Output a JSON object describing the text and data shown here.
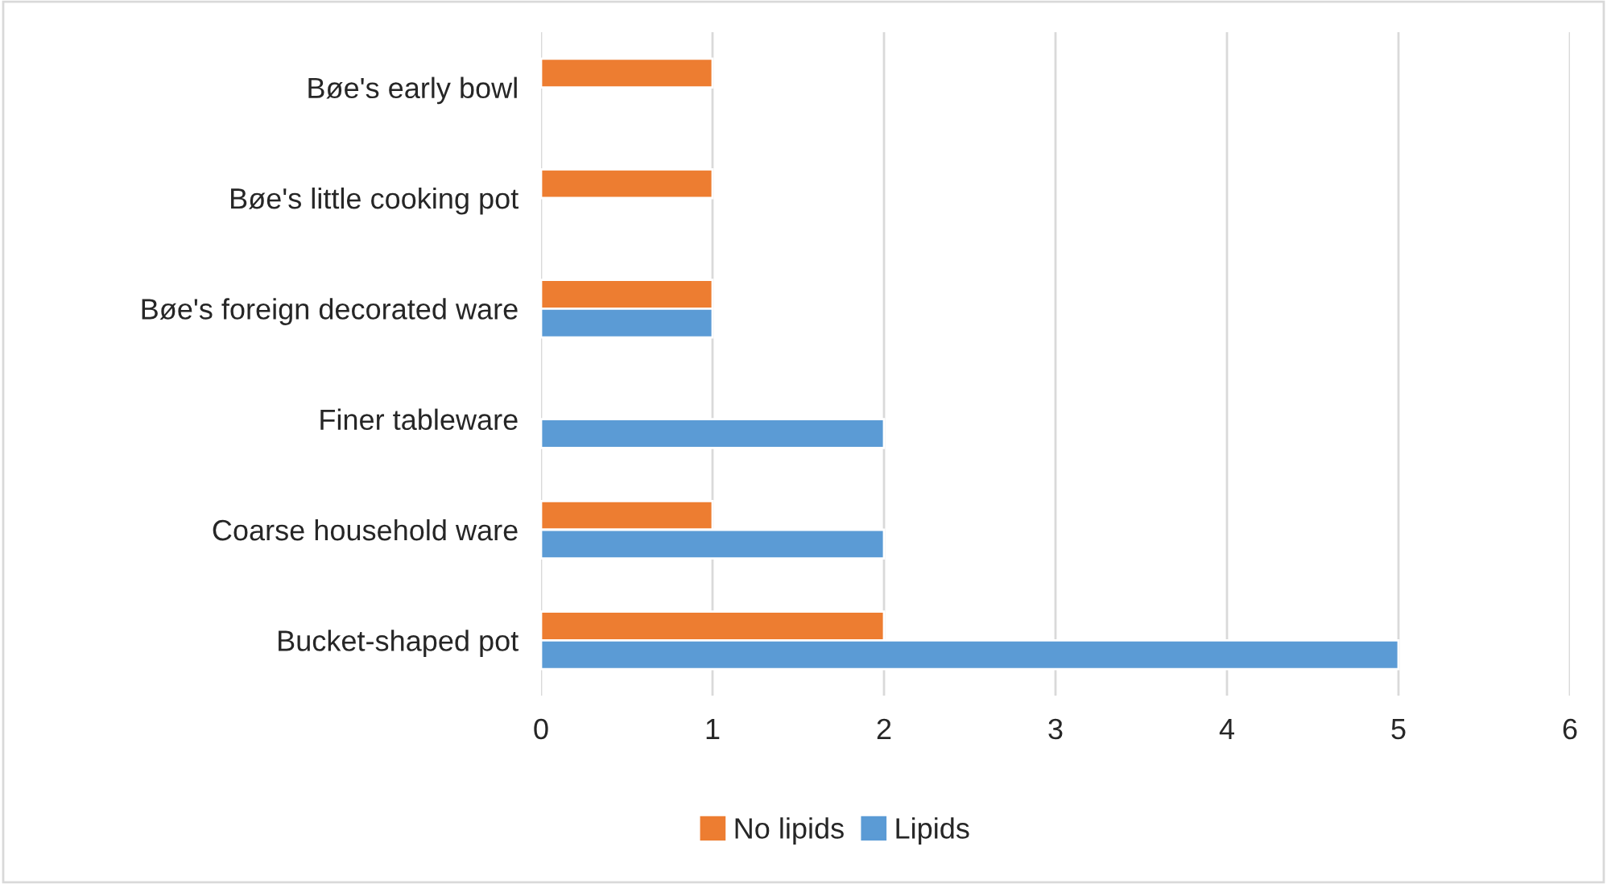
{
  "chart_data": {
    "type": "bar",
    "orientation": "horizontal",
    "categories": [
      "Bøe's early bowl",
      "Bøe's little cooking pot",
      "Bøe's foreign decorated ware",
      "Finer tableware",
      "Coarse household ware",
      "Bucket-shaped pot"
    ],
    "series": [
      {
        "name": "No lipids",
        "color": "#ed7d31",
        "values": [
          1,
          1,
          1,
          null,
          1,
          2
        ]
      },
      {
        "name": "Lipids",
        "color": "#5b9bd5",
        "values": [
          null,
          null,
          1,
          2,
          2,
          5
        ]
      }
    ],
    "xlim": [
      0,
      6
    ],
    "xticks": [
      0,
      1,
      2,
      3,
      4,
      5,
      6
    ],
    "grid": "x",
    "legend": "bottom"
  }
}
